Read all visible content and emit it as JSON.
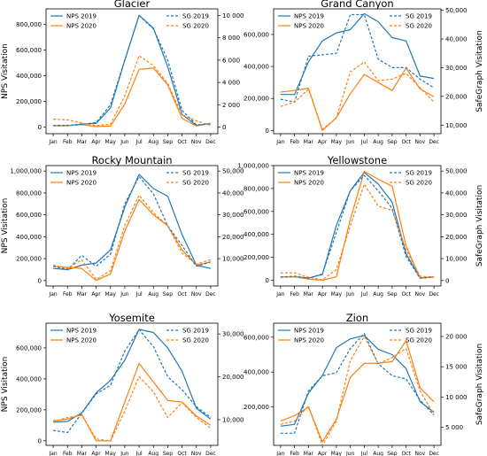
{
  "colors": {
    "nps2019": "#1f77b4",
    "nps2020": "#ff7f0e",
    "sg2019": "#1f77b4",
    "sg2020": "#ff7f0e"
  },
  "legend": {
    "nps2019": "NPS 2019",
    "nps2020": "NPS 2020",
    "sg2019": "SG 2019",
    "sg2020": "SG 2020"
  },
  "chart_data": [
    {
      "type": "line",
      "title": "Glacier",
      "ylabel": "NPS Visitation",
      "ylabel2": "",
      "x": [
        "Jan",
        "Feb",
        "Mar",
        "Apr",
        "May",
        "Jun",
        "Jul",
        "Aug",
        "Sep",
        "Oct",
        "Nov",
        "Dec"
      ],
      "ylim": [
        -50000,
        920000
      ],
      "y2lim": [
        -600,
        10600
      ],
      "yticks": [
        0,
        200000,
        400000,
        600000,
        800000
      ],
      "y2ticks": [
        0,
        2000,
        4000,
        6000,
        8000,
        10000
      ],
      "yticklabels": [
        "0",
        "200,000",
        "400,000",
        "600,000",
        "800,000"
      ],
      "y2ticklabels": [
        "0",
        "2 000",
        "4 000",
        "6 000",
        "8 000",
        "10 000"
      ],
      "series": [
        {
          "name": "NPS 2019",
          "axis": "left",
          "style": "solid",
          "values": [
            12000,
            12000,
            25000,
            30000,
            150000,
            520000,
            870000,
            770000,
            470000,
            100000,
            15000,
            30000
          ]
        },
        {
          "name": "NPS 2020",
          "axis": "left",
          "style": "solid",
          "values": [
            12000,
            12000,
            20000,
            5000,
            10000,
            180000,
            450000,
            460000,
            330000,
            70000,
            10000,
            30000
          ]
        },
        {
          "name": "SG 2019",
          "axis": "right",
          "style": "dashed",
          "values": [
            150,
            150,
            250,
            400,
            2000,
            6000,
            10000,
            8800,
            6000,
            1500,
            200,
            250
          ]
        },
        {
          "name": "SG 2020",
          "axis": "right",
          "style": "dashed",
          "values": [
            700,
            650,
            350,
            120,
            250,
            2800,
            6400,
            5500,
            3900,
            1100,
            550,
            150
          ]
        }
      ],
      "legend_left": "upper-left",
      "legend_right": "upper-right"
    },
    {
      "type": "line",
      "title": "Grand Canyon",
      "ylabel": "",
      "ylabel2": "SafeGraph Visitation",
      "x": [
        "Jan",
        "Feb",
        "Mar",
        "Apr",
        "May",
        "Jun",
        "Jul",
        "Aug",
        "Sep",
        "Oct",
        "Nov",
        "Dec"
      ],
      "ylim": [
        -20000,
        760000
      ],
      "y2lim": [
        7000,
        50500
      ],
      "yticks": [
        0,
        200000,
        400000,
        600000
      ],
      "y2ticks": [
        10000,
        20000,
        30000,
        40000,
        50000
      ],
      "yticklabels": [
        "0",
        "200,000",
        "400,000",
        "600,000"
      ],
      "y2ticklabels": [
        "10,000",
        "20,000",
        "30,000",
        "40,000",
        "50,000"
      ],
      "series": [
        {
          "name": "NPS 2019",
          "axis": "left",
          "style": "solid",
          "values": [
            225000,
            225000,
            430000,
            560000,
            610000,
            630000,
            730000,
            680000,
            580000,
            560000,
            340000,
            325000
          ]
        },
        {
          "name": "NPS 2020",
          "axis": "left",
          "style": "solid",
          "values": [
            240000,
            250000,
            265000,
            0,
            80000,
            230000,
            350000,
            300000,
            250000,
            390000,
            260000,
            210000
          ]
        },
        {
          "name": "SG 2019",
          "axis": "right",
          "style": "dashed",
          "values": [
            19000,
            18000,
            34000,
            34500,
            35000,
            48500,
            48500,
            33000,
            30000,
            30000,
            26000,
            23000
          ]
        },
        {
          "name": "SG 2020",
          "axis": "right",
          "style": "dashed",
          "values": [
            16500,
            18000,
            22500,
            8500,
            12500,
            28500,
            32000,
            25500,
            26000,
            28000,
            23000,
            18000
          ]
        }
      ],
      "legend_left": "upper-left",
      "legend_right": "upper-right"
    },
    {
      "type": "line",
      "title": "Rocky Mountain",
      "ylabel": "NPS Visitation",
      "ylabel2": "",
      "x": [
        "Jan",
        "Feb",
        "Mar",
        "Apr",
        "May",
        "Jun",
        "Jul",
        "Aug",
        "Sep",
        "Oct",
        "Nov",
        "Dec"
      ],
      "ylim": [
        -50000,
        1050000
      ],
      "y2lim": [
        -2500,
        52500
      ],
      "yticks": [
        0,
        200000,
        400000,
        600000,
        800000,
        1000000
      ],
      "y2ticks": [
        10000,
        20000,
        30000,
        40000,
        50000
      ],
      "yticklabels": [
        "0",
        "200,000",
        "400,000",
        "600,000",
        "800,000",
        "1,000,000"
      ],
      "y2ticklabels": [
        "10,000",
        "20,000",
        "30,000",
        "40,000",
        "50,000"
      ],
      "series": [
        {
          "name": "NPS 2019",
          "axis": "left",
          "style": "solid",
          "values": [
            110000,
            100000,
            140000,
            160000,
            280000,
            670000,
            970000,
            840000,
            770000,
            420000,
            140000,
            110000
          ]
        },
        {
          "name": "NPS 2020",
          "axis": "left",
          "style": "solid",
          "values": [
            130000,
            120000,
            110000,
            0,
            60000,
            450000,
            740000,
            600000,
            500000,
            280000,
            140000,
            170000
          ]
        },
        {
          "name": "SG 2019",
          "axis": "right",
          "style": "dashed",
          "values": [
            6500,
            5000,
            11500,
            6500,
            12000,
            35000,
            47500,
            39500,
            25000,
            16000,
            6500,
            8500
          ]
        },
        {
          "name": "SG 2020",
          "axis": "right",
          "style": "dashed",
          "values": [
            7000,
            5500,
            9500,
            500,
            4500,
            25000,
            39000,
            31000,
            25000,
            12500,
            7500,
            9500
          ]
        }
      ],
      "legend_left": "upper-left",
      "legend_right": "upper-right"
    },
    {
      "type": "line",
      "title": "Yellowstone",
      "ylabel": "",
      "ylabel2": "SafeGraph Visitation",
      "x": [
        "Jan",
        "Feb",
        "Mar",
        "Apr",
        "May",
        "Jun",
        "Jul",
        "Aug",
        "Sep",
        "Oct",
        "Nov",
        "Dec"
      ],
      "ylim": [
        -50000,
        1000000
      ],
      "y2lim": [
        -2500,
        52500
      ],
      "yticks": [
        0,
        200000,
        400000,
        600000,
        800000,
        1000000
      ],
      "y2ticks": [
        0,
        10000,
        20000,
        30000,
        40000,
        50000
      ],
      "yticklabels": [
        "0",
        "200,000",
        "400,000",
        "600,000",
        "800,000",
        "1,000,000"
      ],
      "y2ticklabels": [
        "0",
        "10,000",
        "20,000",
        "30,000",
        "40,000",
        "50,000"
      ],
      "series": [
        {
          "name": "NPS 2019",
          "axis": "left",
          "style": "solid",
          "values": [
            30000,
            30000,
            20000,
            50000,
            480000,
            780000,
            940000,
            840000,
            680000,
            230000,
            20000,
            30000
          ]
        },
        {
          "name": "NPS 2020",
          "axis": "left",
          "style": "solid",
          "values": [
            30000,
            30000,
            10000,
            0,
            30000,
            530000,
            950000,
            880000,
            820000,
            300000,
            20000,
            30000
          ]
        },
        {
          "name": "SG 2019",
          "axis": "right",
          "style": "dashed",
          "values": [
            1500,
            2000,
            1000,
            3000,
            22000,
            41000,
            48000,
            41000,
            33000,
            11000,
            1000,
            1500
          ]
        },
        {
          "name": "SG 2020",
          "axis": "right",
          "style": "dashed",
          "values": [
            3500,
            3500,
            1500,
            300,
            5000,
            25000,
            44000,
            34000,
            32000,
            14000,
            2000,
            1500
          ]
        }
      ],
      "legend_left": "upper-left",
      "legend_right": "upper-right"
    },
    {
      "type": "line",
      "title": "Yosemite",
      "ylabel": "NPS Visitation",
      "ylabel2": "",
      "x": [
        "Jan",
        "Feb",
        "Mar",
        "Apr",
        "May",
        "Jun",
        "Jul",
        "Aug",
        "Sep",
        "Oct",
        "Nov",
        "Dec"
      ],
      "ylim": [
        -30000,
        760000
      ],
      "y2lim": [
        4000,
        32500
      ],
      "yticks": [
        0,
        200000,
        400000,
        600000
      ],
      "y2ticks": [
        10000,
        20000,
        30000
      ],
      "yticklabels": [
        "0",
        "200,000",
        "400,000",
        "600,000"
      ],
      "y2ticklabels": [
        "10,000",
        "20,000",
        "30,000"
      ],
      "series": [
        {
          "name": "NPS 2019",
          "axis": "left",
          "style": "solid",
          "values": [
            120000,
            125000,
            180000,
            310000,
            390000,
            520000,
            720000,
            700000,
            600000,
            450000,
            210000,
            140000
          ]
        },
        {
          "name": "NPS 2020",
          "axis": "left",
          "style": "solid",
          "values": [
            130000,
            140000,
            170000,
            0,
            0,
            250000,
            500000,
            380000,
            260000,
            250000,
            160000,
            100000
          ]
        },
        {
          "name": "SG 2019",
          "axis": "right",
          "style": "dashed",
          "values": [
            7500,
            7000,
            11500,
            16000,
            18000,
            26000,
            31000,
            27000,
            20000,
            17000,
            13000,
            10500
          ]
        },
        {
          "name": "SG 2020",
          "axis": "right",
          "style": "dashed",
          "values": [
            9500,
            10500,
            11000,
            5500,
            5000,
            12000,
            20000,
            16500,
            10500,
            14000,
            10500,
            8000
          ]
        }
      ],
      "legend_left": "upper-left",
      "legend_right": "upper-right"
    },
    {
      "type": "line",
      "title": "Zion",
      "ylabel": "",
      "ylabel2": "SafeGraph Visitation",
      "x": [
        "Jan",
        "Feb",
        "Mar",
        "Apr",
        "May",
        "Jun",
        "Jul",
        "Aug",
        "Sep",
        "Oct",
        "Nov",
        "Dec"
      ],
      "ylim": [
        -20000,
        680000
      ],
      "y2lim": [
        2000,
        22200
      ],
      "yticks": [
        200000,
        400000,
        600000
      ],
      "y2ticks": [
        5000,
        10000,
        15000,
        20000
      ],
      "yticklabels": [
        "200,000",
        "400,000",
        "600,000"
      ],
      "y2ticklabels": [
        "5 000",
        "10 000",
        "15 000",
        "20 000"
      ],
      "series": [
        {
          "name": "NPS 2019",
          "axis": "left",
          "style": "solid",
          "values": [
            90000,
            100000,
            280000,
            380000,
            540000,
            590000,
            610000,
            530000,
            500000,
            420000,
            230000,
            170000
          ]
        },
        {
          "name": "NPS 2020",
          "axis": "left",
          "style": "solid",
          "values": [
            120000,
            150000,
            200000,
            0,
            130000,
            370000,
            450000,
            450000,
            460000,
            580000,
            310000,
            230000
          ]
        },
        {
          "name": "SG 2019",
          "axis": "right",
          "style": "dashed",
          "values": [
            4000,
            4000,
            11000,
            13500,
            14000,
            18000,
            20500,
            15500,
            13500,
            13000,
            9500,
            7000
          ]
        },
        {
          "name": "SG 2020",
          "axis": "right",
          "style": "dashed",
          "values": [
            5500,
            6000,
            8500,
            2000,
            6000,
            16000,
            20000,
            15500,
            16500,
            18000,
            11000,
            7000
          ]
        }
      ],
      "legend_left": "upper-left",
      "legend_right": "upper-right"
    }
  ]
}
